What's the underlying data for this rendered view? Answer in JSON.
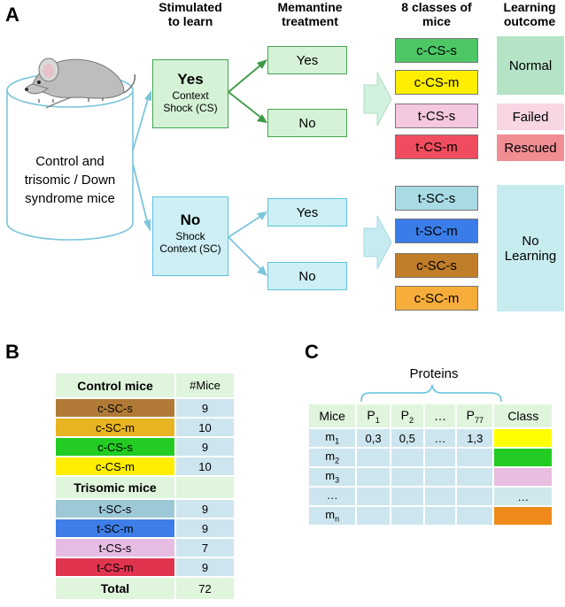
{
  "panels": {
    "a": "A",
    "b": "B",
    "c": "C"
  },
  "headers": {
    "stimulated": [
      "Stimulated",
      "to learn"
    ],
    "memantine": [
      "Memantine",
      "treatment"
    ],
    "classes": [
      "8 classes of",
      "mice"
    ],
    "outcome": [
      "Learning",
      "outcome"
    ]
  },
  "mice_pool": [
    "Control and",
    "trisomic / Down",
    "syndrome mice"
  ],
  "stimulation": {
    "yes": {
      "title": "Yes",
      "line1": "Context",
      "line2": "Shock (CS)"
    },
    "no": {
      "title": "No",
      "line1": "Shock",
      "line2": "Context (SC)"
    }
  },
  "treatment": {
    "yes": "Yes",
    "no": "No"
  },
  "classes_cs": [
    {
      "label": "c-CS-s",
      "color": "#4dc766"
    },
    {
      "label": "c-CS-m",
      "color": "#ffee00"
    },
    {
      "label": "t-CS-s",
      "color": "#f4c8df"
    },
    {
      "label": "t-CS-m",
      "color": "#ef4d5f"
    }
  ],
  "classes_sc": [
    {
      "label": "t-SC-s",
      "color": "#a8dbe4"
    },
    {
      "label": "t-SC-m",
      "color": "#3b7de8"
    },
    {
      "label": "c-SC-s",
      "color": "#c17e2a"
    },
    {
      "label": "c-SC-m",
      "color": "#f7ad3a"
    }
  ],
  "outcomes": {
    "normal": {
      "label": "Normal",
      "color": "#b4e3c6"
    },
    "failed": {
      "label": "Failed",
      "color": "#f8d6e4"
    },
    "rescued": {
      "label": "Rescued",
      "color": "#ef8d92"
    },
    "no_learning": {
      "label": "No Learning",
      "color": "#c7ecf0"
    }
  },
  "table_b": {
    "control_header": "Control mice",
    "count_header": "#Mice",
    "control_rows": [
      {
        "label": "c-SC-s",
        "count": "9",
        "color": "#b07a36"
      },
      {
        "label": "c-SC-m",
        "count": "10",
        "color": "#e8b422"
      },
      {
        "label": "c-CS-s",
        "count": "9",
        "color": "#22cc22"
      },
      {
        "label": "c-CS-m",
        "count": "10",
        "color": "#ffee00"
      }
    ],
    "trisomic_header": "Trisomic mice",
    "trisomic_rows": [
      {
        "label": "t-SC-s",
        "count": "9",
        "color": "#9cc8d8"
      },
      {
        "label": "t-SC-m",
        "count": "9",
        "color": "#3f7ee8"
      },
      {
        "label": "t-CS-s",
        "count": "7",
        "color": "#e6bce3"
      },
      {
        "label": "t-CS-m",
        "count": "9",
        "color": "#e0344f"
      }
    ],
    "total_label": "Total",
    "total_count": "72"
  },
  "table_c": {
    "proteins_label": "Proteins",
    "headers": {
      "mice": "Mice",
      "p1": "P",
      "p1_sub": "1",
      "p2": "P",
      "p2_sub": "2",
      "dots": "…",
      "p77": "P",
      "p77_sub": "77",
      "class": "Class"
    },
    "rows": [
      {
        "m": "m",
        "sub": "1",
        "p1": "0,3",
        "p2": "0,5",
        "dots": "…",
        "p77": "1,3",
        "class_color": "#ffff00",
        "class_text": ""
      },
      {
        "m": "m",
        "sub": "2",
        "p1": "",
        "p2": "",
        "dots": "",
        "p77": "",
        "class_color": "#22cc22",
        "class_text": ""
      },
      {
        "m": "m",
        "sub": "3",
        "p1": "",
        "p2": "",
        "dots": "",
        "p77": "",
        "class_color": "#e8bde0",
        "class_text": ""
      },
      {
        "m": "…",
        "sub": "",
        "p1": "",
        "p2": "",
        "dots": "",
        "p77": "",
        "class_color": "#cfe8ee",
        "class_text": "…"
      },
      {
        "m": "m",
        "sub": "n",
        "p1": "",
        "p2": "",
        "dots": "",
        "p77": "",
        "class_color": "#f08a1a",
        "class_text": ""
      }
    ]
  },
  "colors": {
    "green_box_fill": "#d5f2d7",
    "green_box_border": "#46a552",
    "cyan_box_fill": "#cdeff5",
    "cyan_box_border": "#5fc3de",
    "table_header_fill": "#dff5dc",
    "table_cell_fill": "#cde5ee"
  }
}
